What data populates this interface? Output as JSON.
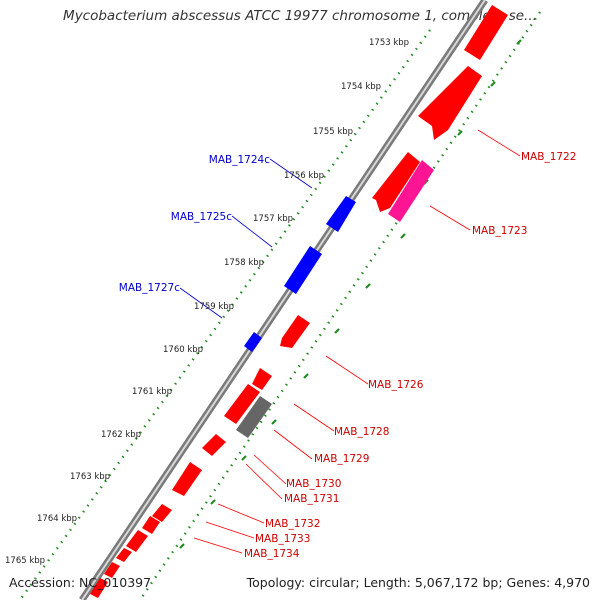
{
  "title": "Mycobacterium abscessus ATCC 19977 chromosome 1, complete se...",
  "footer": {
    "accession": "Accession: NC_010397",
    "summary": "Topology: circular; Length: 5,067,172 bp; Genes: 4,970"
  },
  "colors": {
    "forward_gene": "#ff0000",
    "reverse_gene": "#0000ff",
    "highlight_gene": "#ff1493",
    "pseudo_gene": "#666666",
    "tick": "#228b22",
    "backbone": "#999999",
    "forward_label": "#cc0000",
    "reverse_label": "#0000cc"
  },
  "kbp_ticks": [
    "1753 kbp",
    "1754 kbp",
    "1755 kbp",
    "1756 kbp",
    "1757 kbp",
    "1758 kbp",
    "1759 kbp",
    "1760 kbp",
    "1761 kbp",
    "1762 kbp",
    "1763 kbp",
    "1764 kbp",
    "1765 kbp"
  ],
  "forward_gene_labels": [
    "MAB_1722",
    "MAB_1723",
    "MAB_1726",
    "MAB_1728",
    "MAB_1729",
    "MAB_1730",
    "MAB_1731",
    "MAB_1732",
    "MAB_1733",
    "MAB_1734"
  ],
  "reverse_gene_labels": [
    "MAB_1724c",
    "MAB_1725c",
    "MAB_1727c"
  ]
}
